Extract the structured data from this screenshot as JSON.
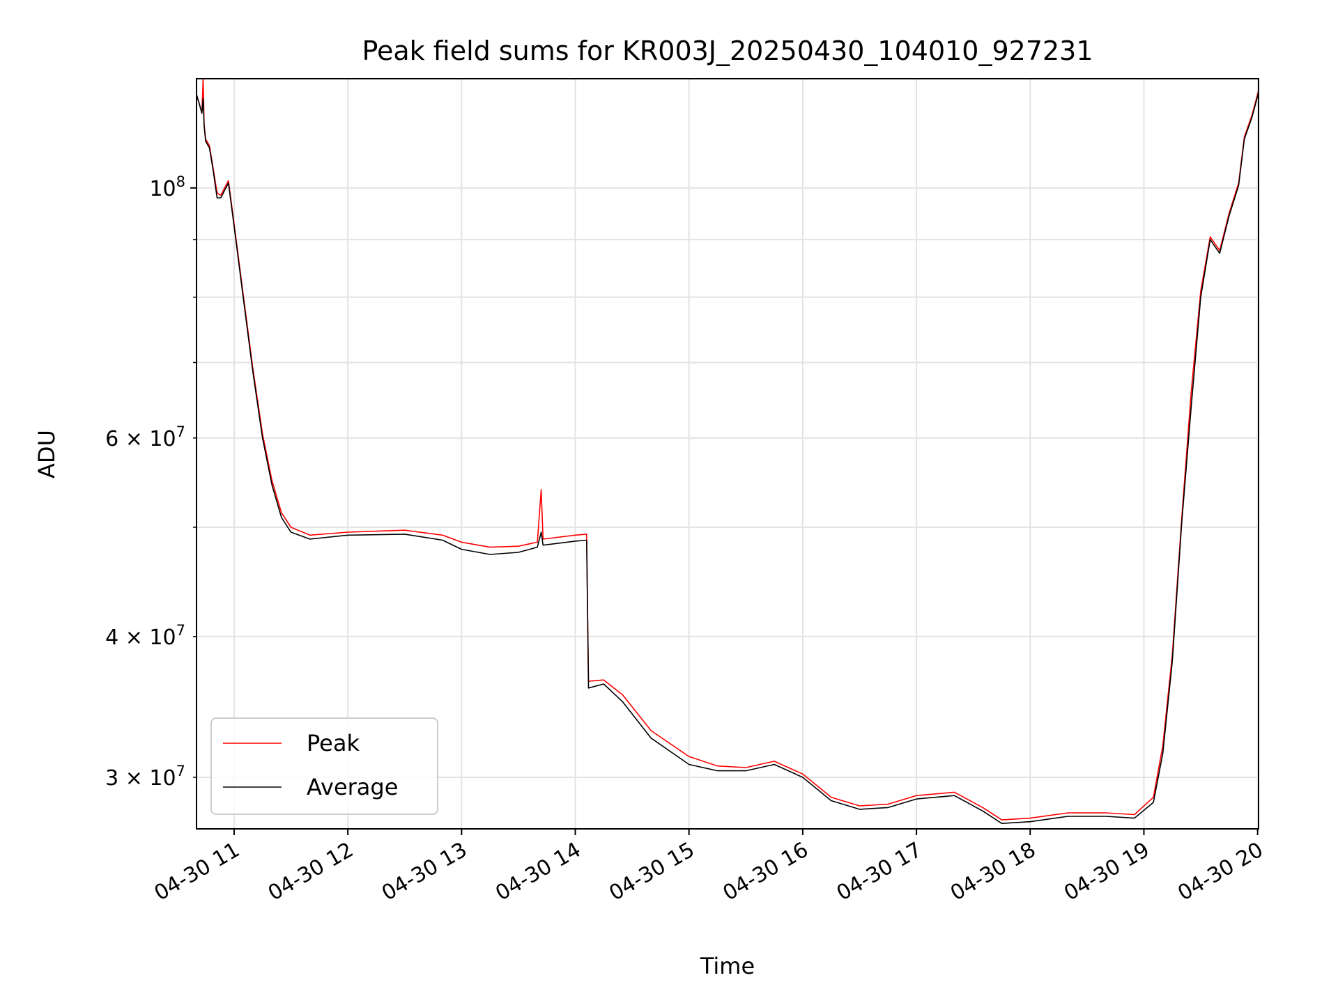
{
  "chart_data": {
    "type": "line",
    "title": "Peak field sums for KR003J_20250430_104010_927231",
    "xlabel": "Time",
    "ylabel": "ADU",
    "xlim": [
      "2025-04-30T10:40:10",
      "2025-04-30T20:00:30"
    ],
    "ylim": [
      27000000,
      125000000
    ],
    "yscale": "log",
    "grid": true,
    "legend_position": "lower left",
    "x_ticks": [
      {
        "t": "2025-04-30T11:00:00",
        "label": "04-30 11"
      },
      {
        "t": "2025-04-30T12:00:00",
        "label": "04-30 12"
      },
      {
        "t": "2025-04-30T13:00:00",
        "label": "04-30 13"
      },
      {
        "t": "2025-04-30T14:00:00",
        "label": "04-30 14"
      },
      {
        "t": "2025-04-30T15:00:00",
        "label": "04-30 15"
      },
      {
        "t": "2025-04-30T16:00:00",
        "label": "04-30 16"
      },
      {
        "t": "2025-04-30T17:00:00",
        "label": "04-30 17"
      },
      {
        "t": "2025-04-30T18:00:00",
        "label": "04-30 18"
      },
      {
        "t": "2025-04-30T19:00:00",
        "label": "04-30 19"
      },
      {
        "t": "2025-04-30T20:00:00",
        "label": "04-30 20"
      }
    ],
    "y_major_ticks": [
      {
        "v": 100000000,
        "base": "10",
        "exp": "8"
      }
    ],
    "y_minor_ticks": [
      {
        "v": 30000000,
        "base": "3 × 10",
        "exp": "7"
      },
      {
        "v": 40000000,
        "base": "4 × 10",
        "exp": "7"
      },
      {
        "v": 50000000
      },
      {
        "v": 60000000,
        "base": "6 × 10",
        "exp": "7"
      },
      {
        "v": 70000000
      },
      {
        "v": 80000000
      },
      {
        "v": 90000000
      }
    ],
    "series": [
      {
        "name": "Peak",
        "color": "#ff0000",
        "points": [
          [
            "2025-04-30T10:40:10",
            121000000
          ],
          [
            "2025-04-30T10:41:30",
            119000000
          ],
          [
            "2025-04-30T10:43:00",
            116500000
          ],
          [
            "2025-04-30T10:43:40",
            125000000
          ],
          [
            "2025-04-30T10:44:10",
            114000000
          ],
          [
            "2025-04-30T10:45:00",
            110500000
          ],
          [
            "2025-04-30T10:47:00",
            109000000
          ],
          [
            "2025-04-30T10:49:00",
            104000000
          ],
          [
            "2025-04-30T10:51:00",
            99000000
          ],
          [
            "2025-04-30T10:53:00",
            98500000
          ],
          [
            "2025-04-30T10:55:00",
            100000000
          ],
          [
            "2025-04-30T10:57:00",
            101500000
          ],
          [
            "2025-04-30T11:00:00",
            93000000
          ],
          [
            "2025-04-30T11:05:00",
            80000000
          ],
          [
            "2025-04-30T11:10:00",
            69000000
          ],
          [
            "2025-04-30T11:15:00",
            60500000
          ],
          [
            "2025-04-30T11:20:00",
            55000000
          ],
          [
            "2025-04-30T11:25:00",
            51500000
          ],
          [
            "2025-04-30T11:30:00",
            50000000
          ],
          [
            "2025-04-30T11:40:00",
            49200000
          ],
          [
            "2025-04-30T12:00:00",
            49500000
          ],
          [
            "2025-04-30T12:30:00",
            49700000
          ],
          [
            "2025-04-30T12:50:00",
            49200000
          ],
          [
            "2025-04-30T13:00:00",
            48500000
          ],
          [
            "2025-04-30T13:15:00",
            48000000
          ],
          [
            "2025-04-30T13:30:00",
            48100000
          ],
          [
            "2025-04-30T13:40:00",
            48500000
          ],
          [
            "2025-04-30T13:42:00",
            54000000
          ],
          [
            "2025-04-30T13:43:00",
            48800000
          ],
          [
            "2025-04-30T14:00:00",
            49200000
          ],
          [
            "2025-04-30T14:06:00",
            49300000
          ],
          [
            "2025-04-30T14:07:00",
            36500000
          ],
          [
            "2025-04-30T14:15:00",
            36600000
          ],
          [
            "2025-04-30T14:25:00",
            35500000
          ],
          [
            "2025-04-30T14:40:00",
            33000000
          ],
          [
            "2025-04-30T15:00:00",
            31300000
          ],
          [
            "2025-04-30T15:15:00",
            30700000
          ],
          [
            "2025-04-30T15:30:00",
            30600000
          ],
          [
            "2025-04-30T15:45:00",
            31000000
          ],
          [
            "2025-04-30T16:00:00",
            30200000
          ],
          [
            "2025-04-30T16:15:00",
            28800000
          ],
          [
            "2025-04-30T16:30:00",
            28300000
          ],
          [
            "2025-04-30T16:45:00",
            28400000
          ],
          [
            "2025-04-30T17:00:00",
            28900000
          ],
          [
            "2025-04-30T17:20:00",
            29100000
          ],
          [
            "2025-04-30T17:35:00",
            28200000
          ],
          [
            "2025-04-30T17:45:00",
            27500000
          ],
          [
            "2025-04-30T18:00:00",
            27600000
          ],
          [
            "2025-04-30T18:20:00",
            27900000
          ],
          [
            "2025-04-30T18:40:00",
            27900000
          ],
          [
            "2025-04-30T18:55:00",
            27800000
          ],
          [
            "2025-04-30T19:05:00",
            28800000
          ],
          [
            "2025-04-30T19:10:00",
            32000000
          ],
          [
            "2025-04-30T19:15:00",
            38500000
          ],
          [
            "2025-04-30T19:20:00",
            51000000
          ],
          [
            "2025-04-30T19:25:00",
            66000000
          ],
          [
            "2025-04-30T19:30:00",
            81000000
          ],
          [
            "2025-04-30T19:35:00",
            90500000
          ],
          [
            "2025-04-30T19:40:00",
            88000000
          ],
          [
            "2025-04-30T19:45:00",
            95000000
          ],
          [
            "2025-04-30T19:50:00",
            101000000
          ],
          [
            "2025-04-30T19:53:00",
            111000000
          ],
          [
            "2025-04-30T19:57:00",
            116000000
          ],
          [
            "2025-04-30T20:00:30",
            122000000
          ]
        ]
      },
      {
        "name": "Average",
        "color": "#000000",
        "points": [
          [
            "2025-04-30T10:40:10",
            121000000
          ],
          [
            "2025-04-30T10:41:30",
            119000000
          ],
          [
            "2025-04-30T10:43:00",
            116500000
          ],
          [
            "2025-04-30T10:43:40",
            120000000
          ],
          [
            "2025-04-30T10:44:10",
            113500000
          ],
          [
            "2025-04-30T10:45:00",
            110000000
          ],
          [
            "2025-04-30T10:47:00",
            108500000
          ],
          [
            "2025-04-30T10:49:00",
            103500000
          ],
          [
            "2025-04-30T10:51:00",
            98000000
          ],
          [
            "2025-04-30T10:53:00",
            98000000
          ],
          [
            "2025-04-30T10:55:00",
            99500000
          ],
          [
            "2025-04-30T10:57:00",
            101000000
          ],
          [
            "2025-04-30T11:00:00",
            92500000
          ],
          [
            "2025-04-30T11:05:00",
            79500000
          ],
          [
            "2025-04-30T11:10:00",
            68500000
          ],
          [
            "2025-04-30T11:15:00",
            60000000
          ],
          [
            "2025-04-30T11:20:00",
            54500000
          ],
          [
            "2025-04-30T11:25:00",
            51000000
          ],
          [
            "2025-04-30T11:30:00",
            49500000
          ],
          [
            "2025-04-30T11:40:00",
            48800000
          ],
          [
            "2025-04-30T12:00:00",
            49200000
          ],
          [
            "2025-04-30T12:30:00",
            49300000
          ],
          [
            "2025-04-30T12:50:00",
            48700000
          ],
          [
            "2025-04-30T13:00:00",
            47800000
          ],
          [
            "2025-04-30T13:15:00",
            47300000
          ],
          [
            "2025-04-30T13:30:00",
            47500000
          ],
          [
            "2025-04-30T13:40:00",
            48000000
          ],
          [
            "2025-04-30T13:42:00",
            49500000
          ],
          [
            "2025-04-30T13:43:00",
            48200000
          ],
          [
            "2025-04-30T14:00:00",
            48600000
          ],
          [
            "2025-04-30T14:06:00",
            48700000
          ],
          [
            "2025-04-30T14:07:00",
            36000000
          ],
          [
            "2025-04-30T14:15:00",
            36300000
          ],
          [
            "2025-04-30T14:25:00",
            35000000
          ],
          [
            "2025-04-30T14:40:00",
            32500000
          ],
          [
            "2025-04-30T15:00:00",
            30800000
          ],
          [
            "2025-04-30T15:15:00",
            30400000
          ],
          [
            "2025-04-30T15:30:00",
            30400000
          ],
          [
            "2025-04-30T15:45:00",
            30800000
          ],
          [
            "2025-04-30T16:00:00",
            30000000
          ],
          [
            "2025-04-30T16:15:00",
            28600000
          ],
          [
            "2025-04-30T16:30:00",
            28100000
          ],
          [
            "2025-04-30T16:45:00",
            28200000
          ],
          [
            "2025-04-30T17:00:00",
            28700000
          ],
          [
            "2025-04-30T17:20:00",
            28900000
          ],
          [
            "2025-04-30T17:35:00",
            28000000
          ],
          [
            "2025-04-30T17:45:00",
            27300000
          ],
          [
            "2025-04-30T18:00:00",
            27400000
          ],
          [
            "2025-04-30T18:20:00",
            27700000
          ],
          [
            "2025-04-30T18:40:00",
            27700000
          ],
          [
            "2025-04-30T18:55:00",
            27600000
          ],
          [
            "2025-04-30T19:05:00",
            28500000
          ],
          [
            "2025-04-30T19:10:00",
            31500000
          ],
          [
            "2025-04-30T19:15:00",
            38000000
          ],
          [
            "2025-04-30T19:20:00",
            50500000
          ],
          [
            "2025-04-30T19:25:00",
            64000000
          ],
          [
            "2025-04-30T19:30:00",
            80000000
          ],
          [
            "2025-04-30T19:35:00",
            90000000
          ],
          [
            "2025-04-30T19:40:00",
            87500000
          ],
          [
            "2025-04-30T19:45:00",
            94500000
          ],
          [
            "2025-04-30T19:50:00",
            100500000
          ],
          [
            "2025-04-30T19:53:00",
            110500000
          ],
          [
            "2025-04-30T19:57:00",
            115500000
          ],
          [
            "2025-04-30T20:00:30",
            121500000
          ]
        ]
      }
    ]
  }
}
